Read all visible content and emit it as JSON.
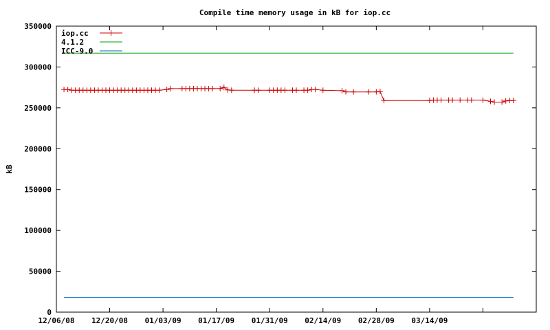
{
  "chart_data": {
    "type": "line",
    "title": "Compile time memory usage in kB for iop.cc",
    "xlabel": "",
    "ylabel": "kB",
    "x_start": "12/06/08",
    "x_end": "04/11/09",
    "ylim": [
      0,
      350000
    ],
    "yticks": [
      "0",
      "50000",
      "100000",
      "150000",
      "200000",
      "250000",
      "300000",
      "350000"
    ],
    "xticks": [
      {
        "label": "12/06/08",
        "date": "12/06/08"
      },
      {
        "label": "12/20/08",
        "date": "12/20/08"
      },
      {
        "label": "01/03/09",
        "date": "01/03/09"
      },
      {
        "label": "01/17/09",
        "date": "01/17/09"
      },
      {
        "label": "01/31/09",
        "date": "01/31/09"
      },
      {
        "label": "02/14/09",
        "date": "02/14/09"
      },
      {
        "label": "02/28/09",
        "date": "02/28/09"
      },
      {
        "label": "03/14/09",
        "date": "03/14/09"
      },
      {
        "label": "",
        "date": "03/28/09"
      }
    ],
    "grid": false,
    "legend_position": "top-left",
    "series": [
      {
        "name": "iop.cc",
        "color": "#cc0000",
        "markers": true,
        "points": [
          [
            "12/08/08",
            272500
          ],
          [
            "12/09/08",
            272500
          ],
          [
            "12/10/08",
            271500
          ],
          [
            "12/11/08",
            271500
          ],
          [
            "12/12/08",
            271500
          ],
          [
            "12/13/08",
            271500
          ],
          [
            "12/14/08",
            271500
          ],
          [
            "12/15/08",
            271500
          ],
          [
            "12/16/08",
            271500
          ],
          [
            "12/17/08",
            271500
          ],
          [
            "12/18/08",
            271500
          ],
          [
            "12/19/08",
            271500
          ],
          [
            "12/20/08",
            271500
          ],
          [
            "12/21/08",
            271500
          ],
          [
            "12/22/08",
            271500
          ],
          [
            "12/23/08",
            271500
          ],
          [
            "12/24/08",
            271500
          ],
          [
            "12/25/08",
            271500
          ],
          [
            "12/26/08",
            271500
          ],
          [
            "12/27/08",
            271500
          ],
          [
            "12/28/08",
            271500
          ],
          [
            "12/29/08",
            271500
          ],
          [
            "12/30/08",
            271500
          ],
          [
            "12/31/08",
            271500
          ],
          [
            "01/01/09",
            271500
          ],
          [
            "01/02/09",
            271500
          ],
          [
            "01/04/09",
            272500
          ],
          [
            "01/05/09",
            273500
          ],
          [
            "01/08/09",
            273500
          ],
          [
            "01/09/09",
            273500
          ],
          [
            "01/10/09",
            273500
          ],
          [
            "01/11/09",
            273500
          ],
          [
            "01/12/09",
            273500
          ],
          [
            "01/13/09",
            273500
          ],
          [
            "01/14/09",
            273500
          ],
          [
            "01/15/09",
            273500
          ],
          [
            "01/16/09",
            273500
          ],
          [
            "01/18/09",
            273500
          ],
          [
            "01/19/09",
            275000
          ],
          [
            "01/20/09",
            272000
          ],
          [
            "01/21/09",
            271500
          ],
          [
            "01/27/09",
            271500
          ],
          [
            "01/28/09",
            271500
          ],
          [
            "01/31/09",
            271500
          ],
          [
            "02/01/09",
            271500
          ],
          [
            "02/02/09",
            271500
          ],
          [
            "02/03/09",
            271500
          ],
          [
            "02/04/09",
            271500
          ],
          [
            "02/06/09",
            271500
          ],
          [
            "02/07/09",
            271500
          ],
          [
            "02/09/09",
            271500
          ],
          [
            "02/10/09",
            271500
          ],
          [
            "02/11/09",
            272500
          ],
          [
            "02/12/09",
            272500
          ],
          [
            "02/14/09",
            271500
          ],
          [
            "02/19/09",
            271000
          ],
          [
            "02/20/09",
            269500
          ],
          [
            "02/22/09",
            269500
          ],
          [
            "02/26/09",
            269500
          ],
          [
            "02/28/09",
            269500
          ],
          [
            "03/01/09",
            270000
          ],
          [
            "03/02/09",
            259000
          ],
          [
            "03/14/09",
            259000
          ],
          [
            "03/15/09",
            259500
          ],
          [
            "03/16/09",
            259500
          ],
          [
            "03/17/09",
            259500
          ],
          [
            "03/19/09",
            259500
          ],
          [
            "03/20/09",
            259500
          ],
          [
            "03/22/09",
            259500
          ],
          [
            "03/24/09",
            259500
          ],
          [
            "03/25/09",
            259500
          ],
          [
            "03/28/09",
            259500
          ],
          [
            "03/30/09",
            258000
          ],
          [
            "03/31/09",
            257000
          ],
          [
            "04/02/09",
            257000
          ],
          [
            "04/03/09",
            258500
          ],
          [
            "04/04/09",
            259000
          ],
          [
            "04/05/09",
            259000
          ]
        ]
      },
      {
        "name": "4.1.2",
        "color": "#00a000",
        "markers": false,
        "points": [
          [
            "12/08/08",
            317000
          ],
          [
            "04/05/09",
            317000
          ]
        ]
      },
      {
        "name": "ICC-9.0",
        "color": "#0060c0",
        "markers": false,
        "points": [
          [
            "12/08/08",
            18000
          ],
          [
            "04/05/09",
            18000
          ]
        ]
      }
    ]
  }
}
